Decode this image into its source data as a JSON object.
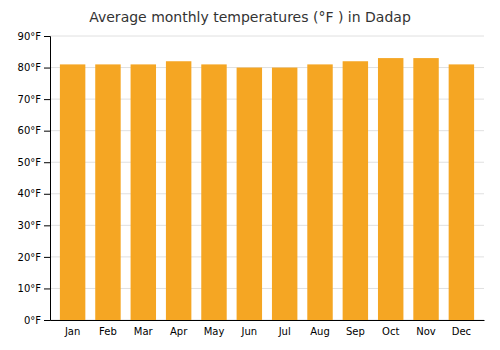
{
  "chart_data": {
    "type": "bar",
    "title": "Average monthly temperatures (°F ) in Dadap",
    "categories": [
      "Jan",
      "Feb",
      "Mar",
      "Apr",
      "May",
      "Jun",
      "Jul",
      "Aug",
      "Sep",
      "Oct",
      "Nov",
      "Dec"
    ],
    "values": [
      81,
      81,
      81,
      82,
      81,
      80,
      80,
      81,
      82,
      83,
      83,
      81
    ],
    "color": "#F5A623",
    "ylim": [
      0,
      90
    ],
    "yticks": [
      {
        "value": 0,
        "label": "0°F"
      },
      {
        "value": 10,
        "label": "10°F"
      },
      {
        "value": 20,
        "label": "20°F"
      },
      {
        "value": 30,
        "label": "30°F"
      },
      {
        "value": 40,
        "label": "40°F"
      },
      {
        "value": 50,
        "label": "50°F"
      },
      {
        "value": 60,
        "label": "60°F"
      },
      {
        "value": 70,
        "label": "70°F"
      },
      {
        "value": 80,
        "label": "80°F"
      },
      {
        "value": 90,
        "label": "90°F"
      }
    ],
    "grid": true
  }
}
